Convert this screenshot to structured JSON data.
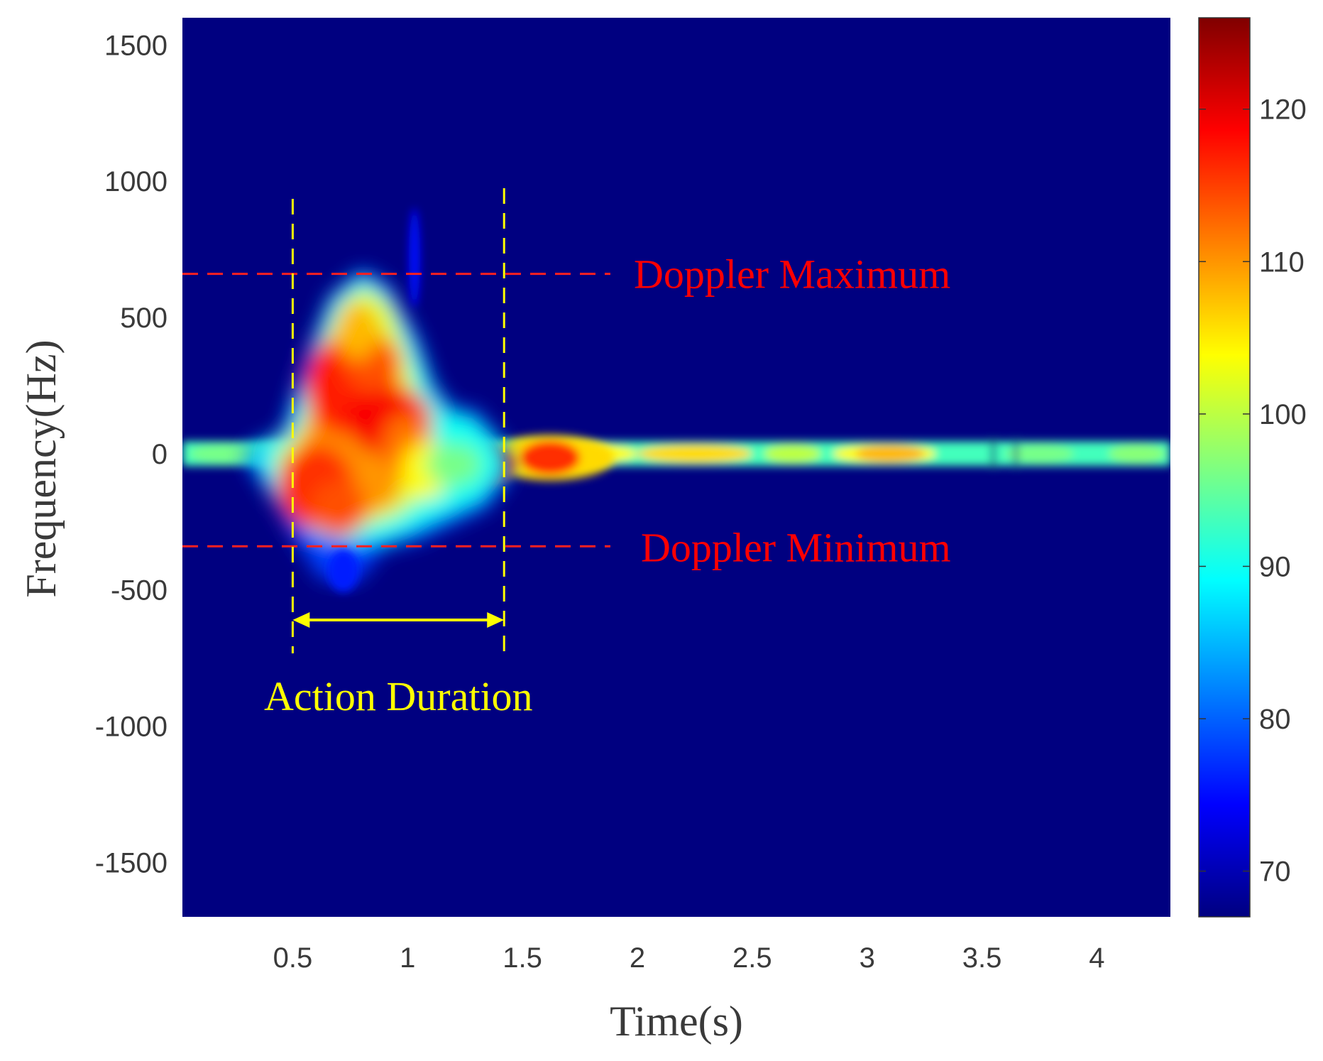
{
  "chart_data": {
    "type": "heatmap",
    "subtype": "spectrogram",
    "title": "",
    "xlabel": "Time(s)",
    "ylabel": "Frequency(Hz)",
    "xlim": [
      0.02,
      4.32
    ],
    "ylim": [
      -1700,
      1600
    ],
    "x_ticks": [
      0.5,
      1,
      1.5,
      2,
      2.5,
      3,
      3.5,
      4
    ],
    "x_tick_labels": [
      "0.5",
      "1",
      "1.5",
      "2",
      "2.5",
      "3",
      "3.5",
      "4"
    ],
    "y_ticks": [
      1500,
      1000,
      500,
      0,
      -500,
      -1000,
      -1500
    ],
    "y_tick_labels": [
      "1500",
      "1000",
      "500",
      "0",
      "-500",
      "-1000",
      "-1500"
    ],
    "colorbar": {
      "colormap": "jet",
      "range": [
        67,
        126
      ],
      "ticks": [
        70,
        80,
        90,
        100,
        110,
        120
      ],
      "tick_labels": [
        "70",
        "80",
        "90",
        "100",
        "110",
        "120"
      ]
    },
    "background_level": 67,
    "features": [
      {
        "name": "zero-doppler band",
        "t": [
          0.02,
          4.32
        ],
        "f": 0,
        "half_width_hz": 45,
        "level": 93
      },
      {
        "name": "torso return",
        "t": [
          1.45,
          3.3
        ],
        "f": -10,
        "level": 106
      },
      {
        "name": "peak region",
        "t": [
          0.5,
          1.4
        ],
        "f": [
          -350,
          660
        ],
        "level": 118
      }
    ],
    "annotations": {
      "doppler_max": {
        "label": "Doppler Maximum",
        "frequency": 660,
        "color": "#ff0000"
      },
      "doppler_min": {
        "label": "Doppler Minimum",
        "frequency": -340,
        "color": "#ff0000"
      },
      "action_duration": {
        "label": "Action Duration",
        "start": 0.5,
        "end": 1.42,
        "color": "#ffff00"
      }
    }
  }
}
